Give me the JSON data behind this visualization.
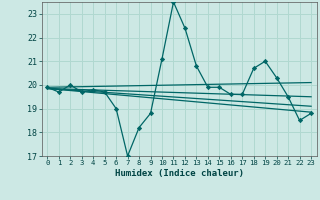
{
  "title": "",
  "xlabel": "Humidex (Indice chaleur)",
  "ylabel": "",
  "bg_color": "#cce8e4",
  "grid_color": "#b0d8d0",
  "line_color": "#006666",
  "xlim": [
    -0.5,
    23.5
  ],
  "ylim": [
    17,
    23.5
  ],
  "yticks": [
    17,
    18,
    19,
    20,
    21,
    22,
    23
  ],
  "xticks": [
    0,
    1,
    2,
    3,
    4,
    5,
    6,
    7,
    8,
    9,
    10,
    11,
    12,
    13,
    14,
    15,
    16,
    17,
    18,
    19,
    20,
    21,
    22,
    23
  ],
  "main_x": [
    0,
    1,
    2,
    3,
    4,
    5,
    6,
    7,
    8,
    9,
    10,
    11,
    12,
    13,
    14,
    15,
    16,
    17,
    18,
    19,
    20,
    21,
    22,
    23
  ],
  "main_y": [
    19.9,
    19.7,
    20.0,
    19.7,
    19.8,
    19.7,
    19.0,
    17.0,
    18.2,
    18.8,
    21.1,
    23.5,
    22.4,
    20.8,
    19.9,
    19.9,
    19.6,
    19.6,
    20.7,
    21.0,
    20.3,
    19.5,
    18.5,
    18.8
  ],
  "trend1_x": [
    0,
    23
  ],
  "trend1_y": [
    19.9,
    20.1
  ],
  "trend2_x": [
    0,
    23
  ],
  "trend2_y": [
    19.85,
    19.5
  ],
  "trend3_x": [
    0,
    23
  ],
  "trend3_y": [
    19.85,
    19.1
  ],
  "trend4_x": [
    0,
    23
  ],
  "trend4_y": [
    19.85,
    18.85
  ]
}
